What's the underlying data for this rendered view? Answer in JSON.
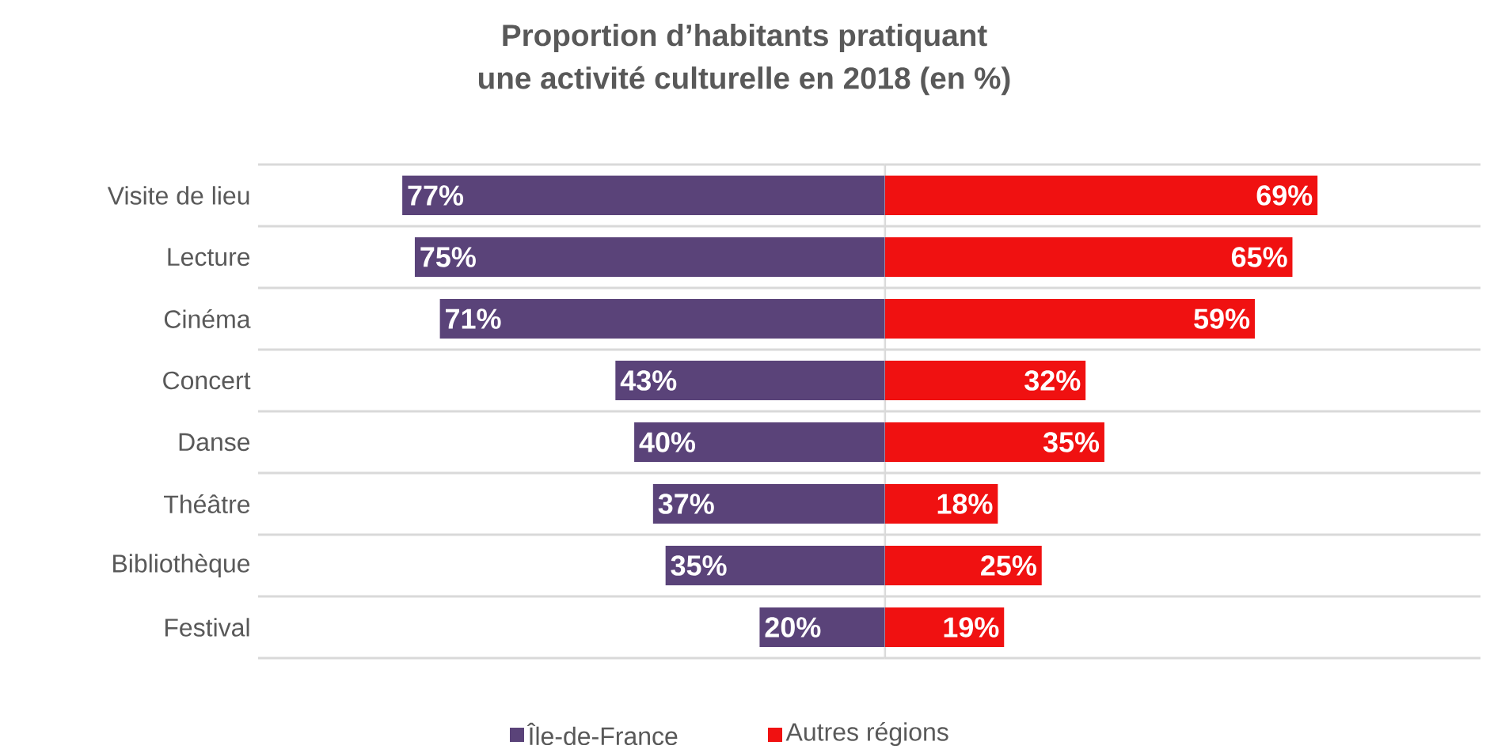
{
  "chart_data": [
    {
      "type": "bar",
      "orientation": "horizontal",
      "title": "Proportion d’habitants pratiquant",
      "subtitle": "une activité culturelle en 2018 (en %)",
      "categories": [
        "Visite de lieu",
        "Lecture",
        "Cinéma",
        "Concert",
        "Danse",
        "Théâtre",
        "Bibliothèque",
        "Festival"
      ],
      "series": [
        {
          "name": "Île-de-France",
          "color": "#5a4379",
          "values": [
            77,
            75,
            71,
            43,
            40,
            37,
            35,
            20
          ],
          "value_labels": [
            "77%",
            "75%",
            "71%",
            "43%",
            "40%",
            "37%",
            "35%",
            "20%"
          ]
        }
      ],
      "xlim": [
        100,
        0
      ],
      "grid": "y",
      "legend": "bottom",
      "tick_labels": "y"
    },
    {
      "type": "bar",
      "orientation": "horizontal",
      "categories": [
        null,
        null,
        null,
        null,
        null,
        null,
        null,
        null
      ],
      "series": [
        {
          "name": "Autres régions",
          "color": "#f01111",
          "values": [
            69,
            65,
            59,
            32,
            35,
            18,
            25,
            19
          ],
          "value_labels": [
            "69%",
            "65%",
            "59%",
            "32%",
            "35%",
            "18%",
            "25%",
            "19%"
          ]
        }
      ],
      "xlim": [
        0,
        95
      ],
      "grid": "y",
      "legend": "bottom",
      "tick_labels": false
    }
  ]
}
